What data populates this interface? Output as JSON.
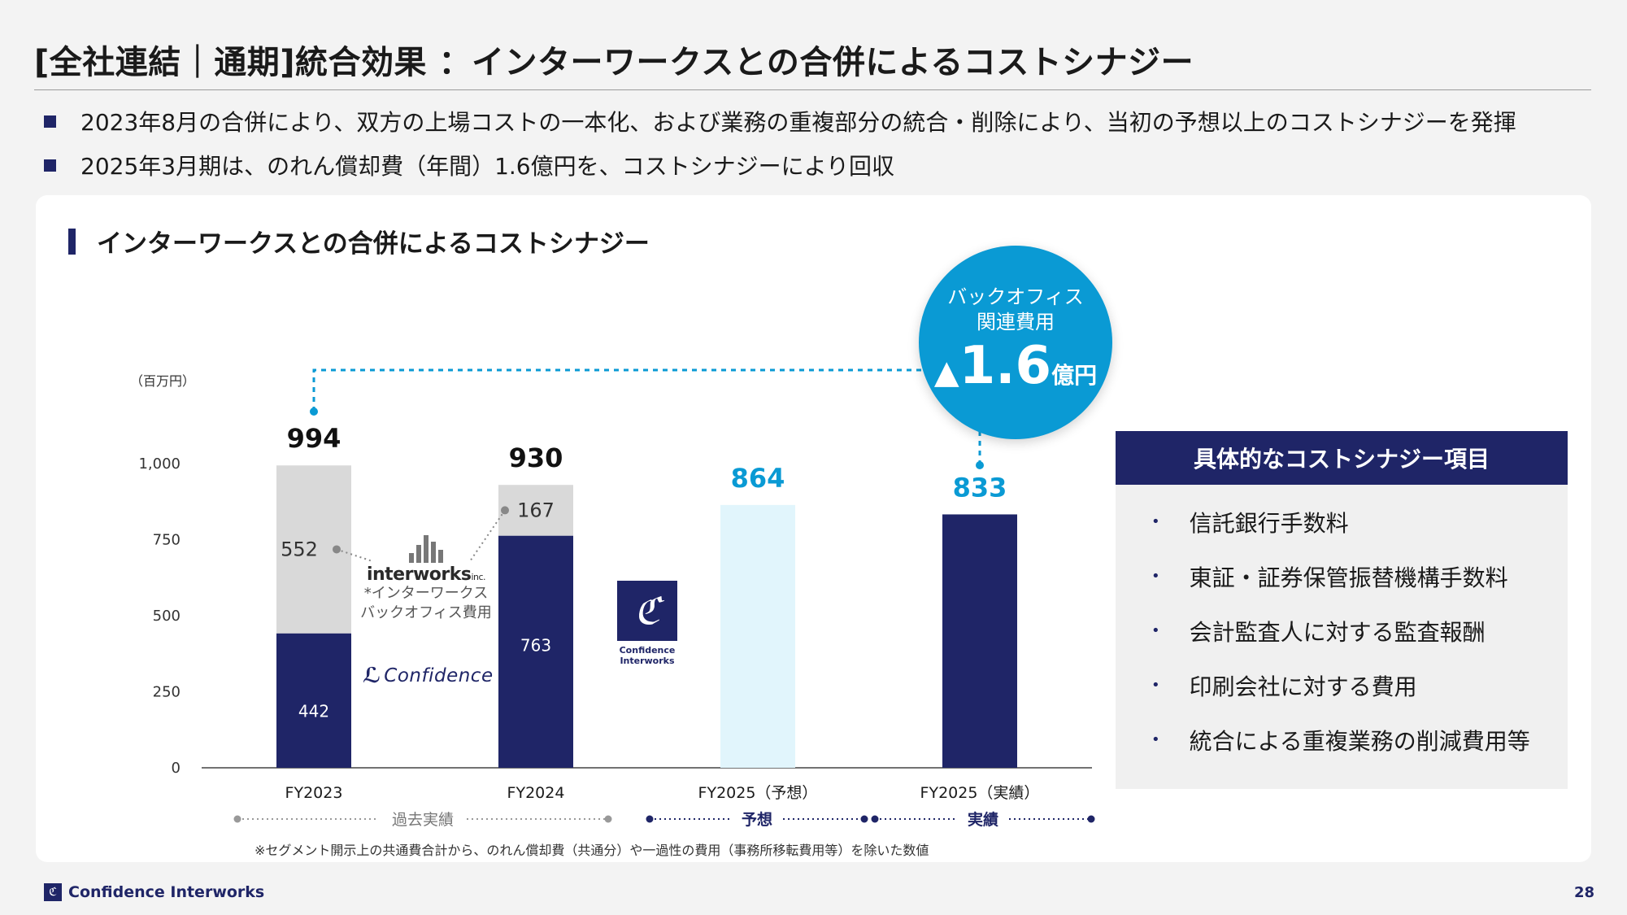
{
  "title": "[全社連結｜通期]統合効果 ：インターワークスとの合併によるコストシナジー",
  "bullets": [
    "2023年8月の合併により、双方の上場コストの一本化、および業務の重複部分の統合・削除により、当初の予想以上のコストシナジーを発揮",
    "2025年3月期は、のれん償却費（年間）1.6億円を、コストシナジーにより回収"
  ],
  "panel_title": "インターワークスとの合併によるコストシナジー",
  "unit_label": "（百万円）",
  "callout": {
    "line1": "バックオフィス",
    "line2": "関連費用",
    "triangle": "▲",
    "value": "1.6",
    "unit": "億円"
  },
  "items_box": {
    "heading": "具体的なコストシナジー項目",
    "items": [
      "信託銀行手数料",
      "東証・証券保管振替機構手数料",
      "会計監査人に対する監査報酬",
      "印刷会社に対する費用",
      "統合による重複業務の削減費用等"
    ]
  },
  "logos": {
    "interworks_word": "interworks",
    "interworks_suffix": "inc.",
    "interworks_note_1": "*インターワークス",
    "interworks_note_2": "バックオフィス費用",
    "confidence_wordmark": "Confidence",
    "ci_line1": "Confidence",
    "ci_line2": "Interworks"
  },
  "periods": [
    {
      "label": "過去実績",
      "color": "#999999"
    },
    {
      "label": "予想",
      "color": "#1f2567"
    },
    {
      "label": "実績",
      "color": "#1f2567"
    }
  ],
  "footnote": "※セグメント開示上の共通費合計から、のれん償却費（共通分）や一過性の費用（事務所移転費用等）を除いた数値",
  "footer": {
    "company": "Confidence Interworks",
    "page": "28"
  },
  "colors": {
    "navy": "#1f2567",
    "gray": "#d9d9d9",
    "light_blue": "#e1f5fc",
    "accent_blue": "#0a9ad4"
  },
  "chart_data": {
    "type": "bar",
    "stacked": true,
    "categories": [
      "FY2023",
      "FY2024",
      "FY2025（予想）",
      "FY2025（実績）"
    ],
    "series": [
      {
        "values": [
          442,
          763,
          null,
          833
        ],
        "color": "#1f2567"
      },
      {
        "values": [
          552,
          167,
          null,
          null
        ],
        "color": "#d9d9d9"
      },
      {
        "values": [
          null,
          null,
          864,
          null
        ],
        "color": "#e1f5fc"
      }
    ],
    "totals": [
      994,
      930,
      864,
      833
    ],
    "ylim": [
      0,
      1000
    ],
    "yticks": [
      0,
      250,
      500,
      750,
      1000
    ],
    "ytick_labels": [
      "0",
      "250",
      "500",
      "750",
      "1,000"
    ],
    "grid": false
  }
}
